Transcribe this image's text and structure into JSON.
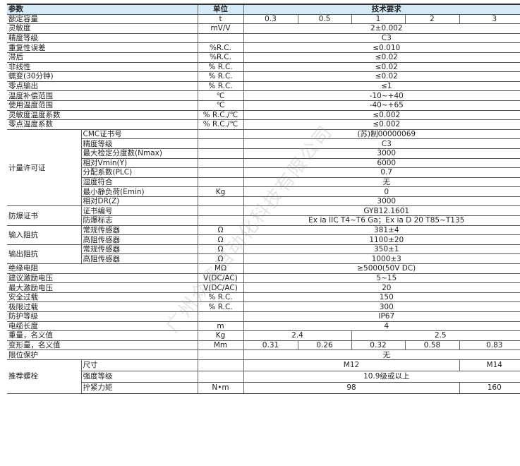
{
  "header": {
    "param": "参数",
    "unit": "单位",
    "spec": "技术要求"
  },
  "capacity": {
    "label": "额定容量",
    "unit": "t",
    "values": [
      "0.3",
      "0.5",
      "1",
      "2",
      "3"
    ]
  },
  "rows": [
    {
      "label": "灵敏度",
      "unit": "mV/V",
      "value": "2±0.002"
    },
    {
      "label": "精度等级",
      "unit": "",
      "value": "C3"
    },
    {
      "label": "重复性误差",
      "unit": "%R.C.",
      "value": "≤0.010"
    },
    {
      "label": "滞后",
      "unit": "%R.C.",
      "value": "≤0.02"
    },
    {
      "label": "非线性",
      "unit": "% R.C.",
      "value": "≤0.02"
    },
    {
      "label": "蠕变(30分钟)",
      "unit": "% R.C.",
      "value": "≤0.02"
    },
    {
      "label": "零点输出",
      "unit": "% R.C.",
      "value": "≤1"
    },
    {
      "label": "温度补偿范围",
      "unit": "℃",
      "value": "-10~+40"
    },
    {
      "label": "使用温度范围",
      "unit": "℃",
      "value": "-40~+65"
    },
    {
      "label": "灵敏度温度系数",
      "unit": "% R.C./℃",
      "value": "≤0.002"
    },
    {
      "label": "零点温度系数",
      "unit": "% R.C./℃",
      "value": "≤0.002"
    }
  ],
  "metrology": {
    "label": "计量许可证",
    "items": [
      {
        "label": "CMC证书号",
        "unit": "",
        "value": "(苏)制00000069"
      },
      {
        "label": "精度等级",
        "unit": "",
        "value": "C3"
      },
      {
        "label": "最大检定分度数(Nmax)",
        "unit": "",
        "value": "3000"
      },
      {
        "label": "相对Vmin(Y)",
        "unit": "",
        "value": "6000"
      },
      {
        "label": "分配系数(PLC)",
        "unit": "",
        "value": "0.7"
      },
      {
        "label": "湿度符合",
        "unit": "",
        "value": "无"
      },
      {
        "label": "最小静负荷(Emin)",
        "unit": "Kg",
        "value": "0"
      },
      {
        "label": "相对DR(Z)",
        "unit": "",
        "value": "3000"
      }
    ]
  },
  "explosion": {
    "label": "防爆证书",
    "items": [
      {
        "label": "证书编号",
        "unit": "",
        "value": "GYB12.1601"
      },
      {
        "label": "防爆标志",
        "unit": "",
        "value": "Ex ia IIC T4~T6 Ga；Ex ia D 20 T85~T135"
      }
    ]
  },
  "input_imp": {
    "label": "输入阻抗",
    "items": [
      {
        "label": "常规传感器",
        "unit": "Ω",
        "value": "381±4"
      },
      {
        "label": "高阻传感器",
        "unit": "Ω",
        "value": "1100±20"
      }
    ]
  },
  "output_imp": {
    "label": "输出阻抗",
    "items": [
      {
        "label": "常规传感器",
        "unit": "Ω",
        "value": "350±1"
      },
      {
        "label": "高阻传感器",
        "unit": "Ω",
        "value": "1000±3"
      }
    ]
  },
  "rows2": [
    {
      "label": "绝缘电阻",
      "unit": "MΩ",
      "value": "≥5000(50V DC)"
    },
    {
      "label": "建议激励电压",
      "unit": "V(DC/AC)",
      "value": "5~15"
    },
    {
      "label": "最大激励电压",
      "unit": "V(DC/AC)",
      "value": "20"
    },
    {
      "label": "安全过载",
      "unit": "% R.C.",
      "value": "150"
    },
    {
      "label": "极限过载",
      "unit": "% R.C.",
      "value": "300"
    },
    {
      "label": "防护等级",
      "unit": "",
      "value": "IP67"
    },
    {
      "label": "电缆长度",
      "unit": "m",
      "value": "4"
    }
  ],
  "weight": {
    "label": "重量，名义值",
    "unit": "Kg",
    "values": [
      "2.4",
      "2.5"
    ]
  },
  "deformation": {
    "label": "变形量，名义值",
    "unit": "Mm",
    "values": [
      "0.31",
      "0.26",
      "0.32",
      "0.58",
      "0.83"
    ]
  },
  "limit": {
    "label": "限位保护",
    "unit": "",
    "value": "无"
  },
  "bolt": {
    "label": "推荐螺栓",
    "size": {
      "label": "尺寸",
      "unit": "",
      "values": [
        "M12",
        "M14"
      ]
    },
    "grade": {
      "label": "强度等级",
      "unit": "",
      "value": "10.9级或以上"
    },
    "torque": {
      "label": "拧紧力矩",
      "unit": "N•m",
      "values": [
        "98",
        "160"
      ]
    }
  },
  "watermark": "广州众鑫自动化科技有限公司",
  "colors": {
    "header_bg": "#d4eaf7"
  }
}
